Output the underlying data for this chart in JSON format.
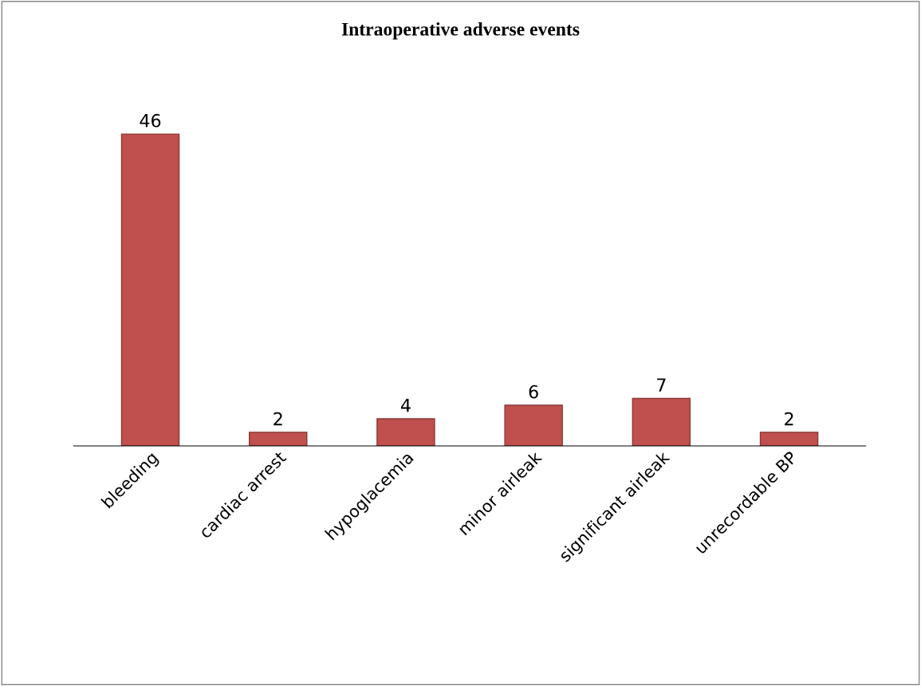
{
  "chart_data": {
    "type": "bar",
    "title": "Intraoperative adverse events",
    "categories": [
      "bleeding",
      "cardiac arrest",
      "hypoglacemia",
      "minor airleak",
      "significant airleak",
      "unrecordable BP"
    ],
    "values": [
      46,
      2,
      4,
      6,
      7,
      2
    ],
    "color": "#c0504d",
    "data_labels": true,
    "tick_labels": "x"
  }
}
